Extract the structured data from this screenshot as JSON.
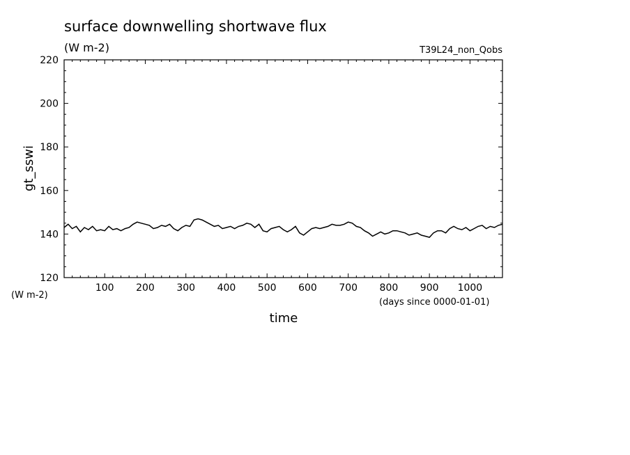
{
  "chart_data": {
    "type": "line",
    "title": "surface downwelling shortwave flux",
    "title_units": "(W m-2)",
    "run_label": "T39L24_non_Qobs",
    "ylabel": "gt_sswi",
    "y_units": "(W m-2)",
    "xlabel": "time",
    "x_units": "(days since 0000-01-01)",
    "xlim": [
      0,
      1080
    ],
    "ylim": [
      120,
      220
    ],
    "x_ticks": [
      100,
      200,
      300,
      400,
      500,
      600,
      700,
      800,
      900,
      1000
    ],
    "y_ticks": [
      120,
      140,
      160,
      180,
      200,
      220
    ],
    "grid": false,
    "line_color": "#000000",
    "series": [
      {
        "x": [
          0,
          10,
          20,
          30,
          40,
          50,
          60,
          70,
          80,
          90,
          100,
          110,
          120,
          130,
          140,
          150,
          160,
          170,
          180,
          190,
          200,
          210,
          220,
          230,
          240,
          250,
          260,
          270,
          280,
          290,
          300,
          310,
          320,
          330,
          340,
          350,
          360,
          370,
          380,
          390,
          400,
          410,
          420,
          430,
          440,
          450,
          460,
          470,
          480,
          490,
          500,
          510,
          520,
          530,
          540,
          550,
          560,
          570,
          580,
          590,
          600,
          610,
          620,
          630,
          640,
          650,
          660,
          670,
          680,
          690,
          700,
          710,
          720,
          730,
          740,
          750,
          760,
          770,
          780,
          790,
          800,
          810,
          820,
          830,
          840,
          850,
          860,
          870,
          880,
          890,
          900,
          910,
          920,
          930,
          940,
          950,
          960,
          970,
          980,
          990,
          1000,
          1010,
          1020,
          1030,
          1040,
          1050,
          1060,
          1070,
          1080
        ],
        "y": [
          143,
          144.5,
          142.5,
          143.5,
          141,
          143,
          142,
          143.5,
          141.5,
          142,
          141.5,
          143.5,
          142,
          142.5,
          141.5,
          142.5,
          143,
          144.5,
          145.5,
          145,
          144.5,
          144,
          142.5,
          143,
          144,
          143.5,
          144.5,
          142.5,
          141.5,
          143,
          144,
          143.5,
          146.5,
          147,
          146.5,
          145.5,
          144.5,
          143.5,
          144,
          142.5,
          143,
          143.5,
          142.5,
          143.5,
          144,
          145,
          144.5,
          143,
          144.5,
          141.5,
          141,
          142.5,
          143,
          143.5,
          142,
          141,
          142,
          143.5,
          140.5,
          139.5,
          141,
          142.5,
          143,
          142.5,
          143,
          143.5,
          144.5,
          144,
          144,
          144.5,
          145.5,
          145,
          143.5,
          143,
          141.5,
          140.5,
          139,
          140,
          141,
          140,
          140.5,
          141.5,
          141.5,
          141,
          140.5,
          139.5,
          140,
          140.5,
          139.5,
          139,
          138.5,
          140.5,
          141.5,
          141.5,
          140.5,
          142.5,
          143.5,
          142.5,
          142,
          143,
          141.5,
          142.5,
          143.5,
          144,
          142.5,
          143.5,
          143,
          144,
          144.5
        ]
      }
    ]
  }
}
